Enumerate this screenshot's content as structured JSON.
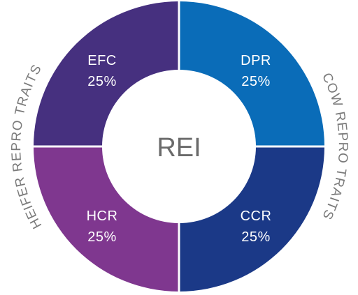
{
  "center_label": "REI",
  "segments": [
    {
      "id": "efc",
      "name": "EFC",
      "percent": "25%",
      "share": 0.25,
      "color": "#46307f"
    },
    {
      "id": "dpr",
      "name": "DPR",
      "percent": "25%",
      "share": 0.25,
      "color": "#0a6cb8"
    },
    {
      "id": "hcr",
      "name": "HCR",
      "percent": "25%",
      "share": 0.25,
      "color": "#7f378f"
    },
    {
      "id": "ccr",
      "name": "CCR",
      "percent": "25%",
      "share": 0.25,
      "color": "#1b3987"
    }
  ],
  "group_labels": {
    "left": "HEIFER REPRO TRAITS",
    "right": "COW REPRO TRAITS"
  },
  "colors": {
    "background": "#ffffff",
    "center_fill": "#ffffff",
    "center_text": "#6a6a6a",
    "group_text": "#7a7a7a"
  }
}
